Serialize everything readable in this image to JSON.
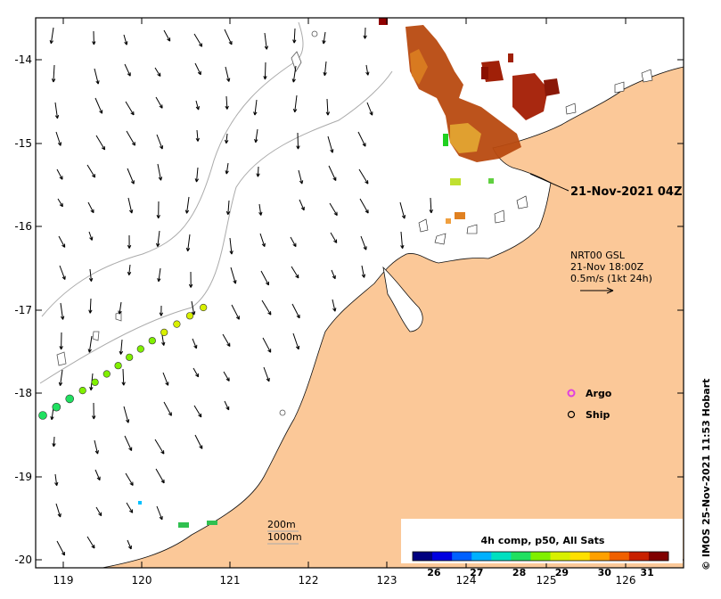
{
  "map": {
    "lat_ticks": [
      "-14",
      "-15",
      "-16",
      "-17",
      "-18",
      "-19",
      "-20"
    ],
    "lon_ticks": [
      "119",
      "120",
      "121",
      "122",
      "123",
      "124",
      "125",
      "126"
    ],
    "land_color": "#fbc898",
    "ocean_color": "#ffffff"
  },
  "annotations": {
    "timestamp": "21-Nov-2021 04Z",
    "current_model": "NRT00 GSL",
    "current_time": "21-Nov 18:00Z",
    "current_scale": "0.5m/s (1kt 24h)",
    "depth_200": "200m",
    "depth_1000": "1000m",
    "credit": "© IMOS 25-Nov-2021 11:53 Hobart"
  },
  "legend": {
    "argo_label": "Argo",
    "ship_label": "Ship",
    "argo_color": "#e040e0"
  },
  "colorbar": {
    "title": "4h comp, p50, All Sats",
    "ticks": [
      "26",
      "27",
      "28",
      "29",
      "30",
      "31"
    ],
    "min": 25.5,
    "max": 31.5,
    "colors": [
      "#00007f",
      "#0000e0",
      "#0060ff",
      "#00b0ff",
      "#00e0c0",
      "#20e060",
      "#80f000",
      "#d8f000",
      "#ffe000",
      "#ffa000",
      "#f06000",
      "#c82000",
      "#800000"
    ]
  },
  "ship_track": {
    "sst": [
      27.9,
      28.0,
      28.2,
      28.4,
      28.5,
      28.5,
      28.6,
      28.6,
      28.7,
      28.7,
      28.8,
      28.9,
      29.0,
      29.1
    ]
  }
}
